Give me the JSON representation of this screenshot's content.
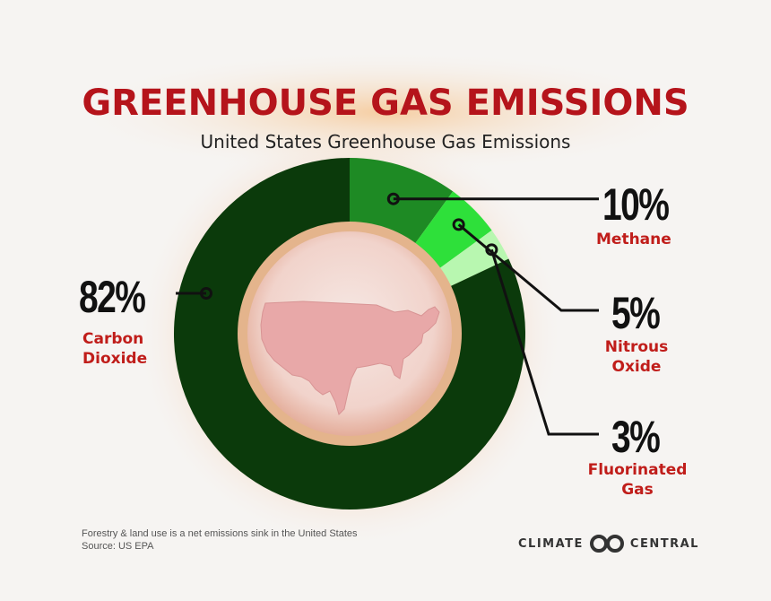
{
  "header": {
    "title": "GREENHOUSE GAS EMISSIONS",
    "subtitle": "United States Greenhouse Gas Emissions"
  },
  "chart_data": {
    "type": "pie",
    "title": "GREENHOUSE GAS EMISSIONS",
    "subtitle": "United States Greenhouse Gas Emissions",
    "categories": [
      "Carbon Dioxide",
      "Methane",
      "Nitrous Oxide",
      "Fluorinated Gas"
    ],
    "values": [
      82,
      10,
      5,
      3
    ],
    "value_labels": [
      "82%",
      "10%",
      "5%",
      "3%"
    ],
    "label_lines": [
      [
        "Carbon",
        "Dioxide"
      ],
      [
        "Methane"
      ],
      [
        "Nitrous",
        "Oxide"
      ],
      [
        "Fluorinated",
        "Gas"
      ]
    ],
    "colors": [
      "#0b3a0b",
      "#1e8a24",
      "#2ee03a",
      "#b8f7b0"
    ],
    "style": "donut",
    "center_icon": "united-states-map"
  },
  "footer": {
    "note": "Forestry & land use is a net emissions sink in the United States",
    "source": "Source: US EPA",
    "brand_left": "CLIMATE",
    "brand_right": "CENTRAL",
    "brand_icon": "climate-central-logo-icon"
  }
}
